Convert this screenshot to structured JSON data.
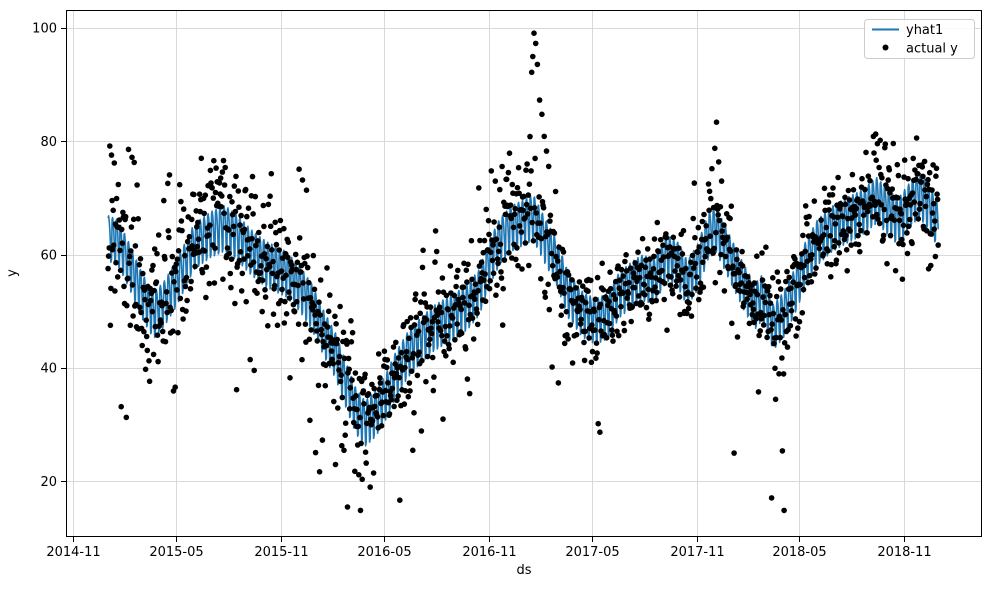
{
  "figure": {
    "type": "forecast-plot"
  },
  "chart_data": {
    "type": "line+scatter",
    "title": "",
    "xlabel": "ds",
    "ylabel": "y",
    "x_ticks": [
      "2014-11",
      "2015-05",
      "2015-11",
      "2016-05",
      "2016-11",
      "2017-05",
      "2017-11",
      "2018-05",
      "2018-11"
    ],
    "y_ticks": [
      20,
      40,
      60,
      80,
      100
    ],
    "xlim": [
      "2014-10-19",
      "2019-03-18"
    ],
    "ylim": [
      10.2,
      103.2
    ],
    "grid": true,
    "legend_position": "upper right",
    "colors": {
      "grid": "#d9d9d9",
      "spine": "#000000",
      "legend_border": "#cccccc"
    },
    "series": [
      {
        "name": "yhat1",
        "type": "line",
        "color": "#1f77b4",
        "start_date": "2015-01-01",
        "end_date": "2018-12-31",
        "weekly_pattern": [
          3.0,
          3.4,
          2.6,
          1.1,
          -1.3,
          -4.6,
          -4.1
        ],
        "trend_anchors": [
          [
            "2015-01-01",
            63.5
          ],
          [
            "2015-01-18",
            62.8
          ],
          [
            "2015-02-08",
            58.5
          ],
          [
            "2015-03-01",
            53.5
          ],
          [
            "2015-03-22",
            49.8
          ],
          [
            "2015-04-10",
            52.0
          ],
          [
            "2015-05-01",
            55.5
          ],
          [
            "2015-06-01",
            62.0
          ],
          [
            "2015-07-01",
            64.2
          ],
          [
            "2015-07-26",
            65.3
          ],
          [
            "2015-08-20",
            63.2
          ],
          [
            "2015-09-10",
            61.0
          ],
          [
            "2015-10-05",
            59.0
          ],
          [
            "2015-11-10",
            57.2
          ],
          [
            "2015-12-05",
            54.5
          ],
          [
            "2015-12-25",
            51.5
          ],
          [
            "2016-01-15",
            46.8
          ],
          [
            "2016-02-05",
            42.8
          ],
          [
            "2016-02-25",
            37.2
          ],
          [
            "2016-03-12",
            33.0
          ],
          [
            "2016-03-28",
            30.8
          ],
          [
            "2016-04-15",
            32.5
          ],
          [
            "2016-05-01",
            35.0
          ],
          [
            "2016-05-20",
            39.2
          ],
          [
            "2016-06-10",
            42.8
          ],
          [
            "2016-07-01",
            45.2
          ],
          [
            "2016-07-25",
            47.5
          ],
          [
            "2016-08-15",
            48.8
          ],
          [
            "2016-09-05",
            50.0
          ],
          [
            "2016-09-25",
            51.5
          ],
          [
            "2016-10-15",
            54.0
          ],
          [
            "2016-11-01",
            59.0
          ],
          [
            "2016-11-20",
            63.0
          ],
          [
            "2016-12-10",
            65.2
          ],
          [
            "2017-01-01",
            66.3
          ],
          [
            "2017-01-18",
            67.2
          ],
          [
            "2017-02-05",
            63.5
          ],
          [
            "2017-02-28",
            59.2
          ],
          [
            "2017-03-20",
            53.5
          ],
          [
            "2017-04-15",
            50.0
          ],
          [
            "2017-05-08",
            48.8
          ],
          [
            "2017-05-28",
            49.8
          ],
          [
            "2017-06-18",
            53.5
          ],
          [
            "2017-07-12",
            55.5
          ],
          [
            "2017-07-28",
            56.5
          ],
          [
            "2017-08-18",
            56.0
          ],
          [
            "2017-09-10",
            60.0
          ],
          [
            "2017-09-28",
            59.0
          ],
          [
            "2017-10-16",
            55.5
          ],
          [
            "2017-11-03",
            58.5
          ],
          [
            "2017-11-22",
            64.0
          ],
          [
            "2017-12-05",
            65.0
          ],
          [
            "2017-12-20",
            62.0
          ],
          [
            "2018-01-08",
            58.0
          ],
          [
            "2018-01-25",
            54.5
          ],
          [
            "2018-02-12",
            51.5
          ],
          [
            "2018-02-24",
            53.0
          ],
          [
            "2018-03-16",
            47.8
          ],
          [
            "2018-04-03",
            50.0
          ],
          [
            "2018-04-22",
            54.0
          ],
          [
            "2018-05-12",
            59.0
          ],
          [
            "2018-06-02",
            62.8
          ],
          [
            "2018-06-25",
            65.0
          ],
          [
            "2018-07-20",
            66.5
          ],
          [
            "2018-08-15",
            67.8
          ],
          [
            "2018-09-14",
            70.2
          ],
          [
            "2018-10-02",
            68.3
          ],
          [
            "2018-10-21",
            66.4
          ],
          [
            "2018-11-10",
            69.2
          ],
          [
            "2018-11-27",
            71.3
          ],
          [
            "2018-12-12",
            69.3
          ],
          [
            "2018-12-31",
            65.8
          ]
        ]
      },
      {
        "name": "actual y",
        "type": "scatter",
        "color": "#000000",
        "marker_radius": 2.8,
        "seed": 11,
        "noise_sd": 4.3,
        "weekly_fraction": 0.6,
        "sd_periods": [
          {
            "from": "2015-01-01",
            "to": "2015-05-10",
            "sd": 6.8
          },
          {
            "from": "2015-05-11",
            "to": "2015-10-15",
            "sd": 5.0
          },
          {
            "from": "2016-01-01",
            "to": "2016-04-30",
            "sd": 5.2
          },
          {
            "from": "2016-11-01",
            "to": "2017-01-12",
            "sd": 5.2
          },
          {
            "from": "2017-04-01",
            "to": "2017-09-30",
            "sd": 3.5
          },
          {
            "from": "2018-06-01",
            "to": "2018-09-05",
            "sd": 3.6
          }
        ],
        "outliers": [
          [
            "2015-01-04",
            79.2
          ],
          [
            "2015-01-07",
            77.6
          ],
          [
            "2015-01-12",
            76.2
          ],
          [
            "2015-01-24",
            33.2
          ],
          [
            "2015-02-02",
            31.3
          ],
          [
            "2015-02-06",
            78.6
          ],
          [
            "2015-02-12",
            77.2
          ],
          [
            "2015-02-16",
            76.3
          ],
          [
            "2015-03-08",
            39.8
          ],
          [
            "2015-03-14",
            41.3
          ],
          [
            "2015-04-16",
            72.6
          ],
          [
            "2015-04-19",
            74.1
          ],
          [
            "2015-06-30",
            74.9
          ],
          [
            "2015-07-06",
            76.6
          ],
          [
            "2015-07-10",
            75.3
          ],
          [
            "2015-07-15",
            72.8
          ],
          [
            "2015-08-15",
            36.2
          ],
          [
            "2015-09-08",
            41.5
          ],
          [
            "2015-09-15",
            39.6
          ],
          [
            "2015-11-17",
            38.3
          ],
          [
            "2015-12-03",
            75.1
          ],
          [
            "2015-12-09",
            73.2
          ],
          [
            "2015-12-16",
            71.4
          ],
          [
            "2015-12-22",
            30.8
          ],
          [
            "2016-01-01",
            25.1
          ],
          [
            "2016-01-08",
            21.7
          ],
          [
            "2016-01-13",
            27.3
          ],
          [
            "2016-02-05",
            23.0
          ],
          [
            "2016-02-20",
            25.5
          ],
          [
            "2016-02-26",
            15.5
          ],
          [
            "2016-03-10",
            21.8
          ],
          [
            "2016-03-20",
            14.9
          ],
          [
            "2016-04-06",
            19.0
          ],
          [
            "2016-04-12",
            21.5
          ],
          [
            "2016-05-28",
            16.7
          ],
          [
            "2016-06-20",
            25.5
          ],
          [
            "2016-07-05",
            28.9
          ],
          [
            "2016-08-12",
            31.0
          ],
          [
            "2016-09-28",
            35.5
          ],
          [
            "2016-10-14",
            71.8
          ],
          [
            "2016-11-05",
            74.8
          ],
          [
            "2016-11-12",
            73.0
          ],
          [
            "2016-11-20",
            71.5
          ],
          [
            "2016-11-25",
            47.6
          ],
          [
            "2016-12-05",
            74.5
          ],
          [
            "2016-12-12",
            72.4
          ],
          [
            "2017-01-15",
            92.2
          ],
          [
            "2017-01-17",
            95.0
          ],
          [
            "2017-01-19",
            99.1
          ],
          [
            "2017-01-22",
            97.3
          ],
          [
            "2017-01-25",
            93.6
          ],
          [
            "2017-01-29",
            87.3
          ],
          [
            "2017-02-02",
            84.8
          ],
          [
            "2017-02-06",
            80.9
          ],
          [
            "2017-02-10",
            78.3
          ],
          [
            "2017-02-14",
            75.6
          ],
          [
            "2017-02-20",
            40.2
          ],
          [
            "2017-03-03",
            37.4
          ],
          [
            "2017-03-28",
            40.9
          ],
          [
            "2017-05-12",
            30.2
          ],
          [
            "2017-05-15",
            28.7
          ],
          [
            "2017-09-10",
            46.7
          ],
          [
            "2017-11-22",
            72.5
          ],
          [
            "2017-11-28",
            75.2
          ],
          [
            "2017-12-03",
            78.8
          ],
          [
            "2017-12-06",
            83.4
          ],
          [
            "2017-12-10",
            76.4
          ],
          [
            "2017-12-15",
            73.0
          ],
          [
            "2018-01-06",
            25.0
          ],
          [
            "2018-01-12",
            45.5
          ],
          [
            "2018-02-18",
            35.8
          ],
          [
            "2018-03-13",
            17.1
          ],
          [
            "2018-03-20",
            34.5
          ],
          [
            "2018-03-26",
            39.0
          ],
          [
            "2018-04-01",
            25.4
          ],
          [
            "2018-04-04",
            14.9
          ],
          [
            "2018-09-08",
            80.9
          ],
          [
            "2018-09-12",
            81.3
          ],
          [
            "2018-09-15",
            79.6
          ],
          [
            "2018-09-20",
            80.2
          ],
          [
            "2018-09-28",
            78.9
          ],
          [
            "2018-10-20",
            75.9
          ]
        ]
      }
    ]
  }
}
